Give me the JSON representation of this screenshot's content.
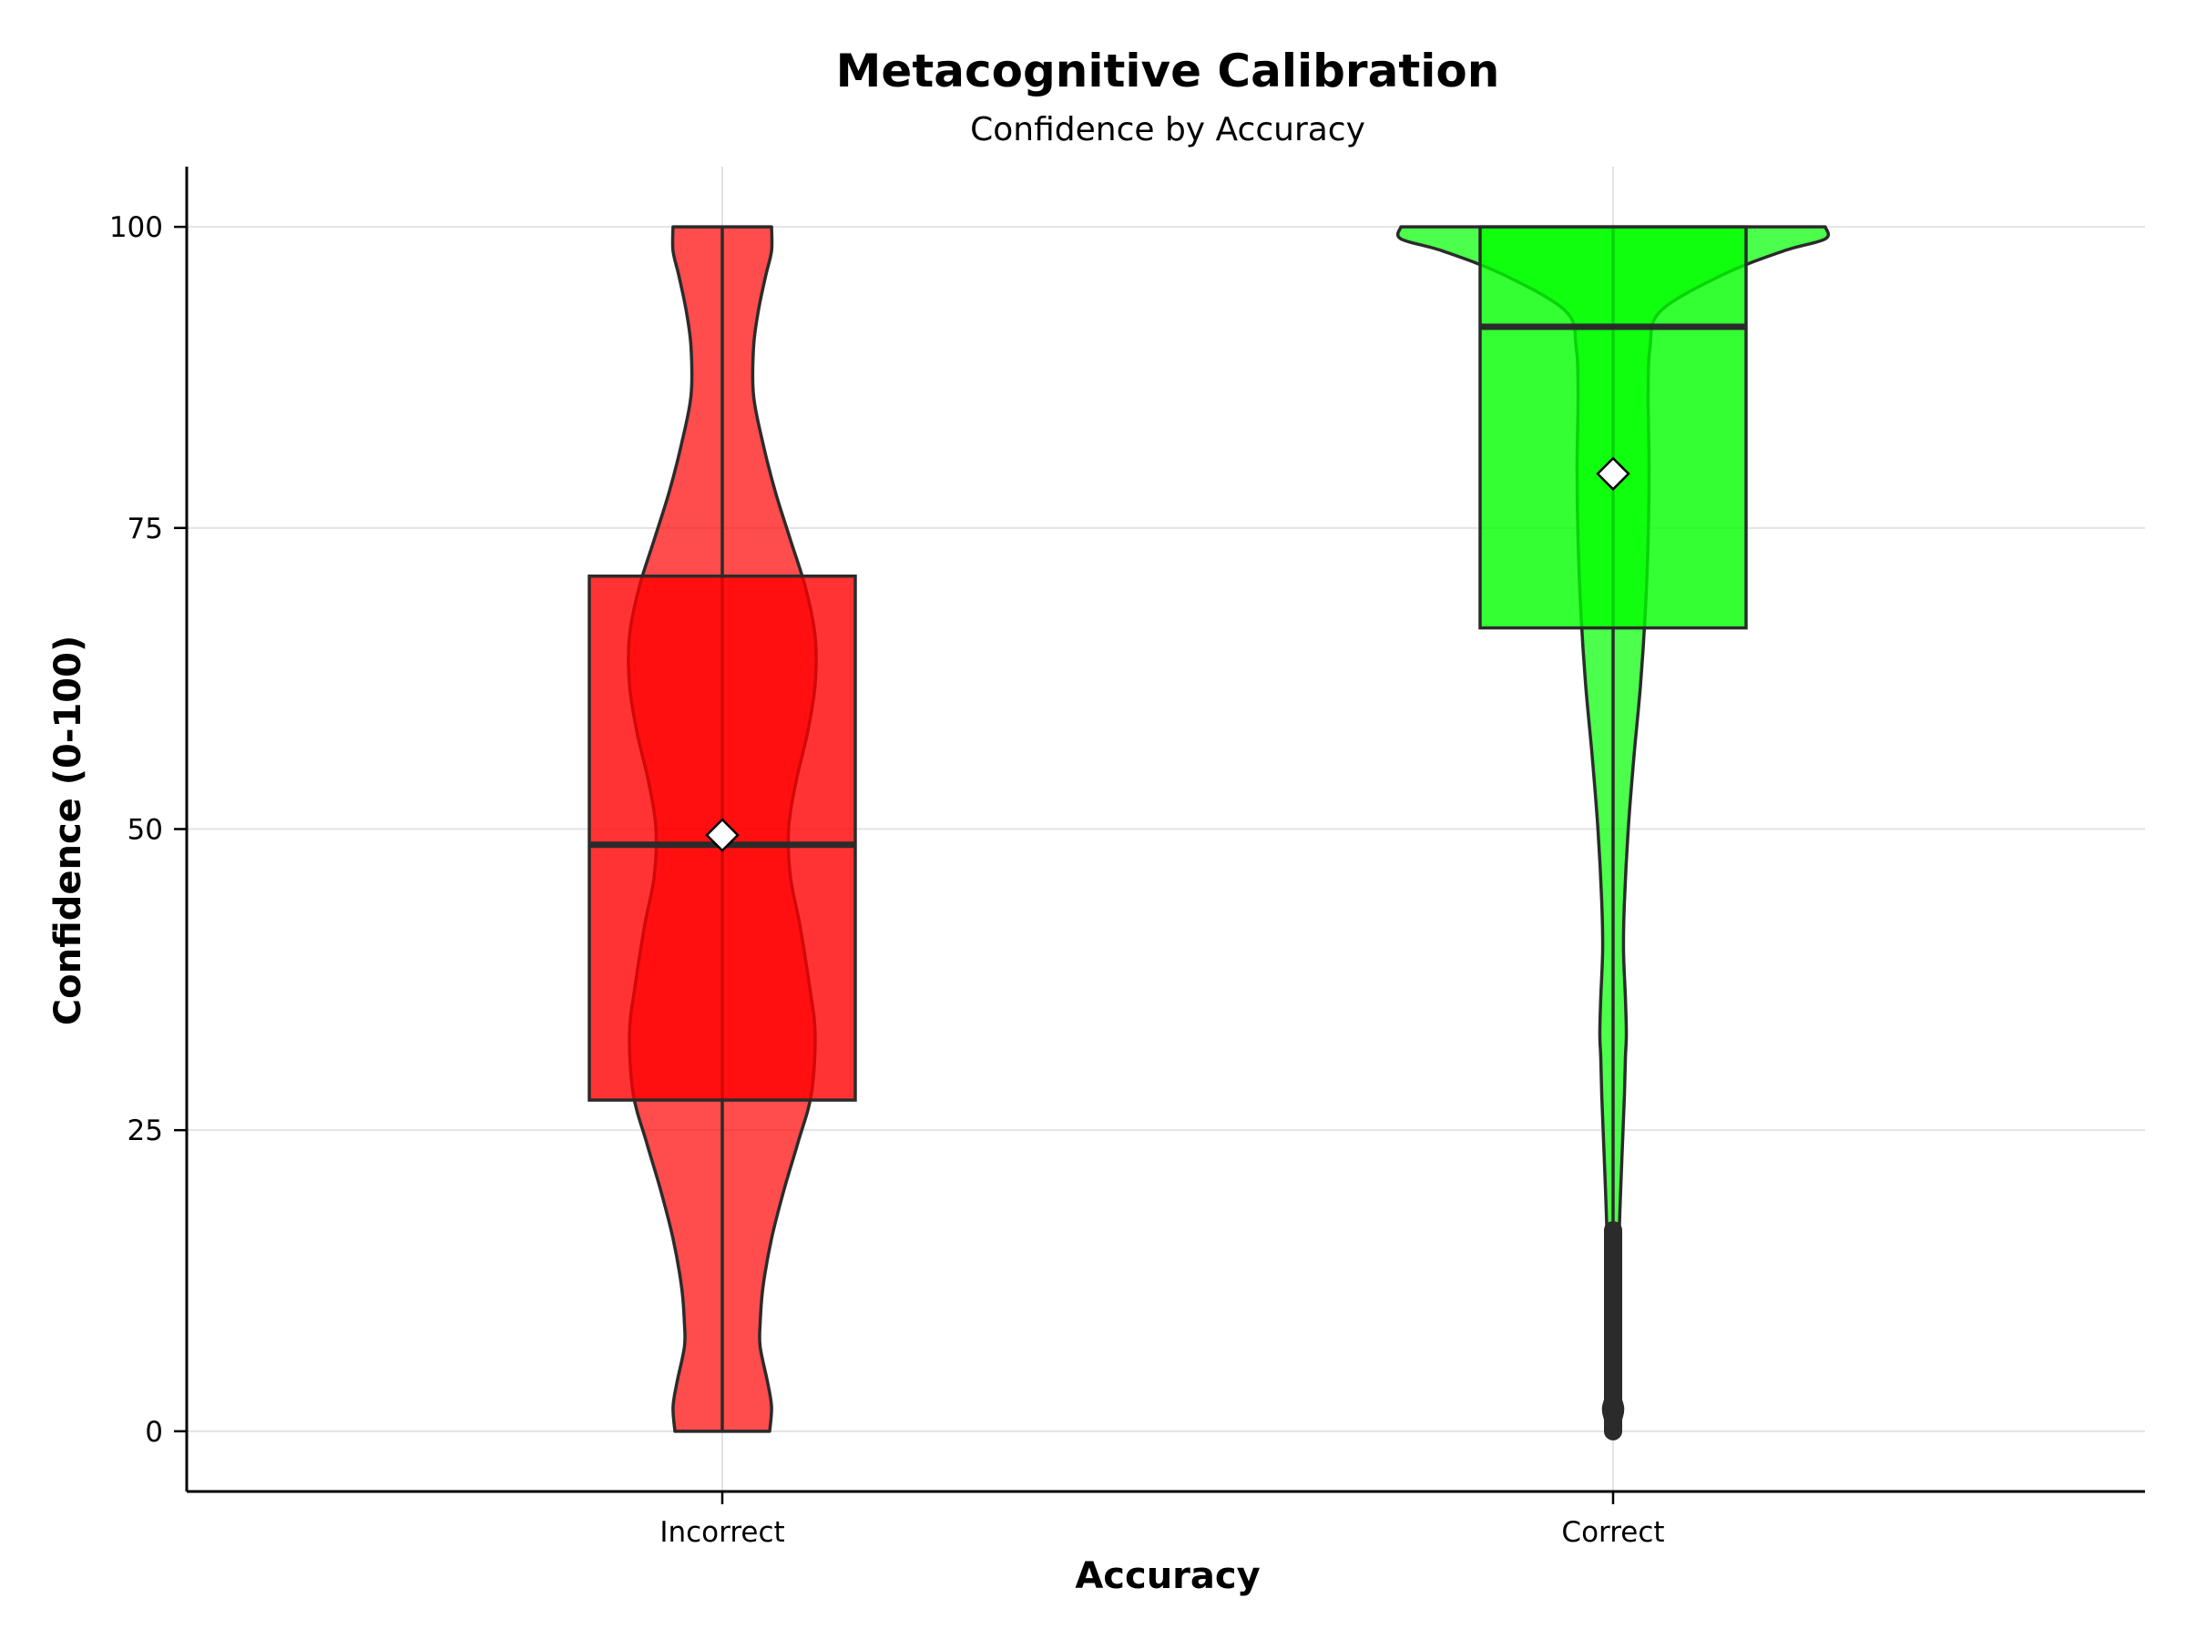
{
  "chart_data": {
    "type": "violin",
    "title": "Metacognitive Calibration",
    "subtitle": "Confidence by Accuracy",
    "xlabel": "Accuracy",
    "ylabel": "Confidence (0-100)",
    "categories": [
      "Incorrect",
      "Correct"
    ],
    "ylim": [
      -5,
      105
    ],
    "yticks": [
      0,
      25,
      50,
      75,
      100
    ],
    "grid": true,
    "colors": {
      "Incorrect": "#ff0000",
      "Correct": "#00ff00",
      "outline": "#2b2b2b",
      "grid": "#e3e3e3"
    },
    "groups": [
      {
        "name": "Incorrect",
        "color": "#ff0000",
        "q1": 27.5,
        "median": 48.7,
        "q3": 71.0,
        "whisker_low": 0,
        "whisker_high": 100,
        "mean": 49.5,
        "density": [
          [
            0,
            0.5
          ],
          [
            2,
            0.52
          ],
          [
            4,
            0.48
          ],
          [
            7,
            0.4
          ],
          [
            9,
            0.4
          ],
          [
            12,
            0.43
          ],
          [
            16,
            0.52
          ],
          [
            20,
            0.65
          ],
          [
            24,
            0.8
          ],
          [
            28,
            0.94
          ],
          [
            33,
            0.98
          ],
          [
            37,
            0.92
          ],
          [
            42,
            0.82
          ],
          [
            46,
            0.72
          ],
          [
            50,
            0.7
          ],
          [
            54,
            0.78
          ],
          [
            58,
            0.9
          ],
          [
            62,
            0.98
          ],
          [
            66,
            0.98
          ],
          [
            70,
            0.88
          ],
          [
            74,
            0.72
          ],
          [
            78,
            0.56
          ],
          [
            82,
            0.43
          ],
          [
            86,
            0.33
          ],
          [
            90,
            0.33
          ],
          [
            93,
            0.38
          ],
          [
            96,
            0.46
          ],
          [
            98,
            0.52
          ],
          [
            100,
            0.52
          ]
        ]
      },
      {
        "name": "Correct",
        "color": "#00ff00",
        "q1": 66.7,
        "median": 91.7,
        "q3": 100,
        "whisker_low": 0,
        "whisker_high": 100,
        "mean": 79.5,
        "outliers_range": [
          0,
          16.7
        ],
        "density": [
          [
            0,
            0.04
          ],
          [
            1,
            0.08
          ],
          [
            2,
            0.1
          ],
          [
            4,
            0.04
          ],
          [
            8,
            0.05
          ],
          [
            15,
            0.06
          ],
          [
            20,
            0.08
          ],
          [
            24,
            0.1
          ],
          [
            28,
            0.12
          ],
          [
            31,
            0.13
          ],
          [
            33,
            0.14
          ],
          [
            36,
            0.13
          ],
          [
            40,
            0.11
          ],
          [
            44,
            0.12
          ],
          [
            50,
            0.16
          ],
          [
            56,
            0.22
          ],
          [
            62,
            0.29
          ],
          [
            68,
            0.34
          ],
          [
            74,
            0.37
          ],
          [
            80,
            0.38
          ],
          [
            86,
            0.37
          ],
          [
            90,
            0.39
          ],
          [
            93,
            0.5
          ],
          [
            96,
            1.15
          ],
          [
            98,
            1.8
          ],
          [
            99,
            2.24
          ],
          [
            100,
            2.24
          ]
        ]
      }
    ]
  }
}
